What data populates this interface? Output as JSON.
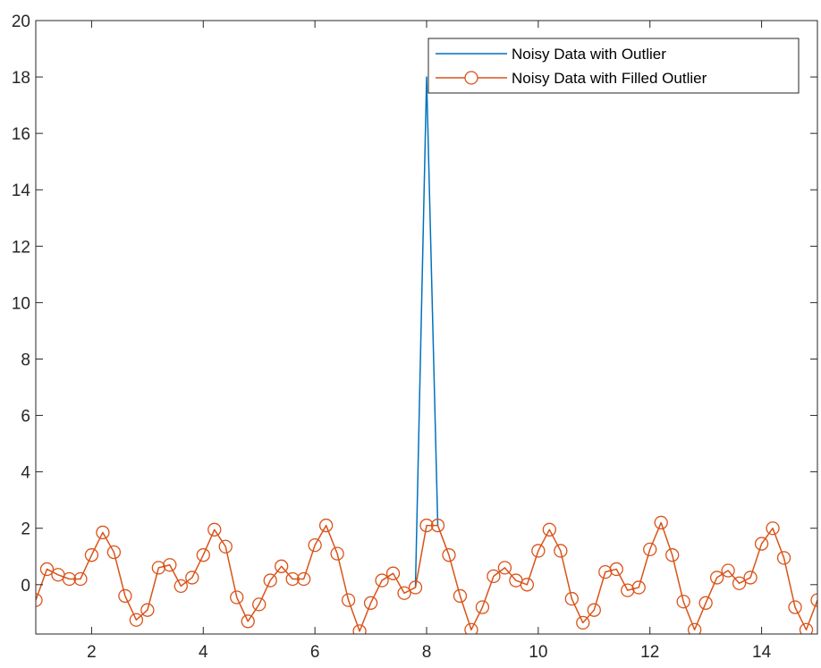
{
  "chart_data": {
    "type": "line",
    "title": "",
    "xlabel": "",
    "ylabel": "",
    "xlim": [
      1,
      15
    ],
    "ylim": [
      -1.75,
      20
    ],
    "x_ticks": [
      2,
      4,
      6,
      8,
      10,
      12,
      14
    ],
    "y_ticks": [
      0,
      2,
      4,
      6,
      8,
      10,
      12,
      14,
      16,
      18,
      20
    ],
    "grid": false,
    "legend_position": "top-right",
    "series": [
      {
        "name": "Noisy Data with Outlier",
        "color": "#0072BD",
        "marker": "none",
        "x": [
          7.8,
          8.0,
          8.2
        ],
        "y": [
          -0.1,
          18.0,
          2.1
        ]
      },
      {
        "name": "Noisy Data with Filled Outlier",
        "color": "#D95319",
        "marker": "circle-open",
        "x": [
          1.0,
          1.2,
          1.4,
          1.6,
          1.8,
          2.0,
          2.2,
          2.4,
          2.6,
          2.8,
          3.0,
          3.2,
          3.4,
          3.6,
          3.8,
          4.0,
          4.2,
          4.4,
          4.6,
          4.8,
          5.0,
          5.2,
          5.4,
          5.6,
          5.8,
          6.0,
          6.2,
          6.4,
          6.6,
          6.8,
          7.0,
          7.2,
          7.4,
          7.6,
          7.8,
          8.0,
          8.2,
          8.4,
          8.6,
          8.8,
          9.0,
          9.2,
          9.4,
          9.6,
          9.8,
          10.0,
          10.2,
          10.4,
          10.6,
          10.8,
          11.0,
          11.2,
          11.4,
          11.6,
          11.8,
          12.0,
          12.2,
          12.4,
          12.6,
          12.8,
          13.0,
          13.2,
          13.4,
          13.6,
          13.8,
          14.0,
          14.2,
          14.4,
          14.6,
          14.8,
          15.0
        ],
        "y": [
          -0.55,
          0.55,
          0.35,
          0.2,
          0.2,
          1.05,
          1.85,
          1.15,
          -0.4,
          -1.25,
          -0.9,
          0.6,
          0.7,
          -0.05,
          0.25,
          1.05,
          1.95,
          1.35,
          -0.45,
          -1.3,
          -0.7,
          0.15,
          0.65,
          0.2,
          0.2,
          1.4,
          2.1,
          1.1,
          -0.55,
          -1.65,
          -0.65,
          0.15,
          0.4,
          -0.3,
          -0.1,
          2.1,
          2.1,
          1.05,
          -0.4,
          -1.6,
          -0.8,
          0.3,
          0.6,
          0.15,
          0.0,
          1.2,
          1.95,
          1.2,
          -0.5,
          -1.35,
          -0.9,
          0.45,
          0.55,
          -0.2,
          -0.1,
          1.25,
          2.2,
          1.05,
          -0.6,
          -1.6,
          -0.65,
          0.25,
          0.5,
          0.05,
          0.25,
          1.45,
          2.0,
          0.95,
          -0.8,
          -1.6,
          -0.55
        ]
      }
    ]
  }
}
